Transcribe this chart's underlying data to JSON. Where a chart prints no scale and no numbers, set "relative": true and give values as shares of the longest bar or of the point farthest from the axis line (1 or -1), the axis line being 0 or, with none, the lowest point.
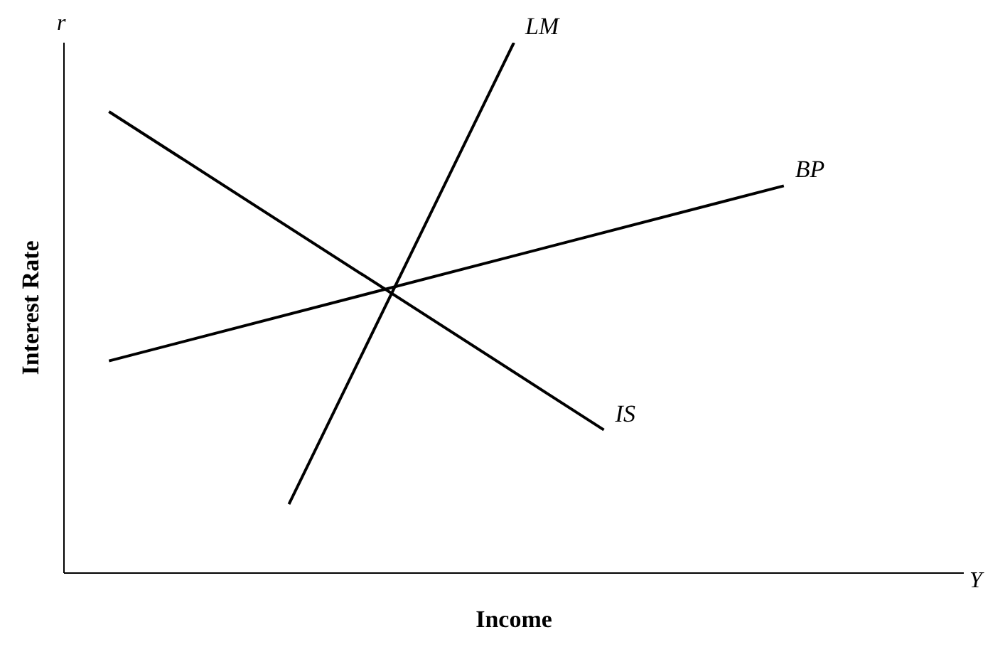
{
  "chart_data": {
    "type": "line",
    "relative": true,
    "xlabel": "Income",
    "ylabel": "Interest Rate",
    "annotations": [
      "r",
      "Y"
    ],
    "grid": false,
    "legend": false,
    "marker": "none",
    "line_style": "solid",
    "categories": [
      null,
      null,
      null,
      null,
      null,
      null,
      null,
      null,
      null,
      null,
      null,
      null,
      null,
      null,
      null,
      null,
      null,
      null,
      null,
      null,
      null
    ],
    "series": [
      {
        "name": "LM",
        "color": "#000000",
        "values": [
          null,
          null,
          null,
          null,
          null,
          0.13,
          null,
          null,
          null,
          null,
          1,
          null,
          null,
          null,
          null,
          null,
          null,
          null,
          null,
          null,
          null
        ]
      },
      {
        "name": "BP",
        "color": "#000000",
        "values": [
          null,
          0.4,
          null,
          null,
          null,
          null,
          null,
          null,
          null,
          null,
          null,
          null,
          null,
          null,
          null,
          null,
          0.73,
          null,
          null,
          null,
          null
        ]
      },
      {
        "name": "IS",
        "color": "#000000",
        "values": [
          null,
          0.87,
          null,
          null,
          null,
          null,
          null,
          null,
          null,
          null,
          null,
          null,
          0.27,
          null,
          null,
          null,
          null,
          null,
          null,
          null,
          null
        ]
      }
    ]
  }
}
